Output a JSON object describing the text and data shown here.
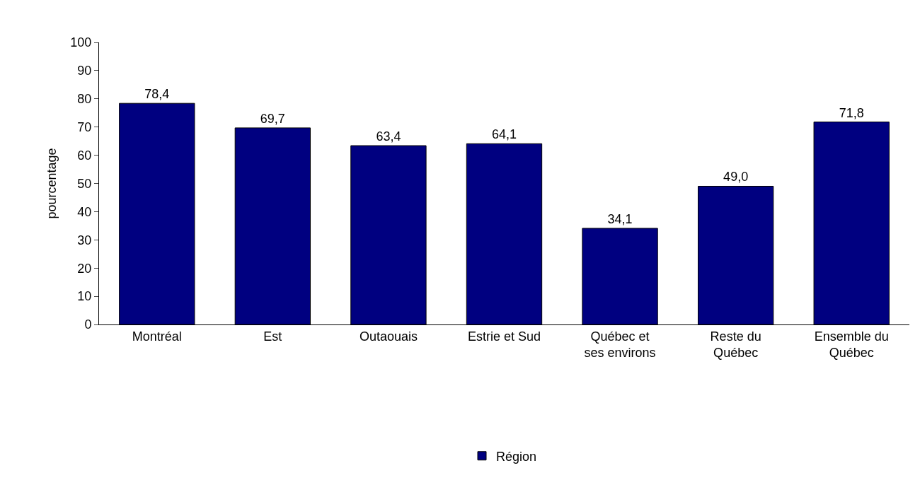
{
  "chart_data": {
    "type": "bar",
    "ylabel": "pourcentage",
    "categories": [
      "Montréal",
      "Est",
      "Outaouais",
      "Estrie et Sud",
      "Québec et\nses environs",
      "Reste du\nQuébec",
      "Ensemble du\nQuébec"
    ],
    "series": [
      {
        "name": "Région",
        "color": "#000080",
        "values": [
          78.4,
          69.7,
          63.4,
          64.1,
          34.1,
          49.0,
          71.8
        ],
        "value_labels": [
          "78,4",
          "69,7",
          "63,4",
          "64,1",
          "34,1",
          "49,0",
          "71,8"
        ]
      }
    ],
    "ylim": [
      0,
      100
    ],
    "yticks": [
      0,
      10,
      20,
      30,
      40,
      50,
      60,
      70,
      80,
      90,
      100
    ],
    "legend": "bottom"
  }
}
